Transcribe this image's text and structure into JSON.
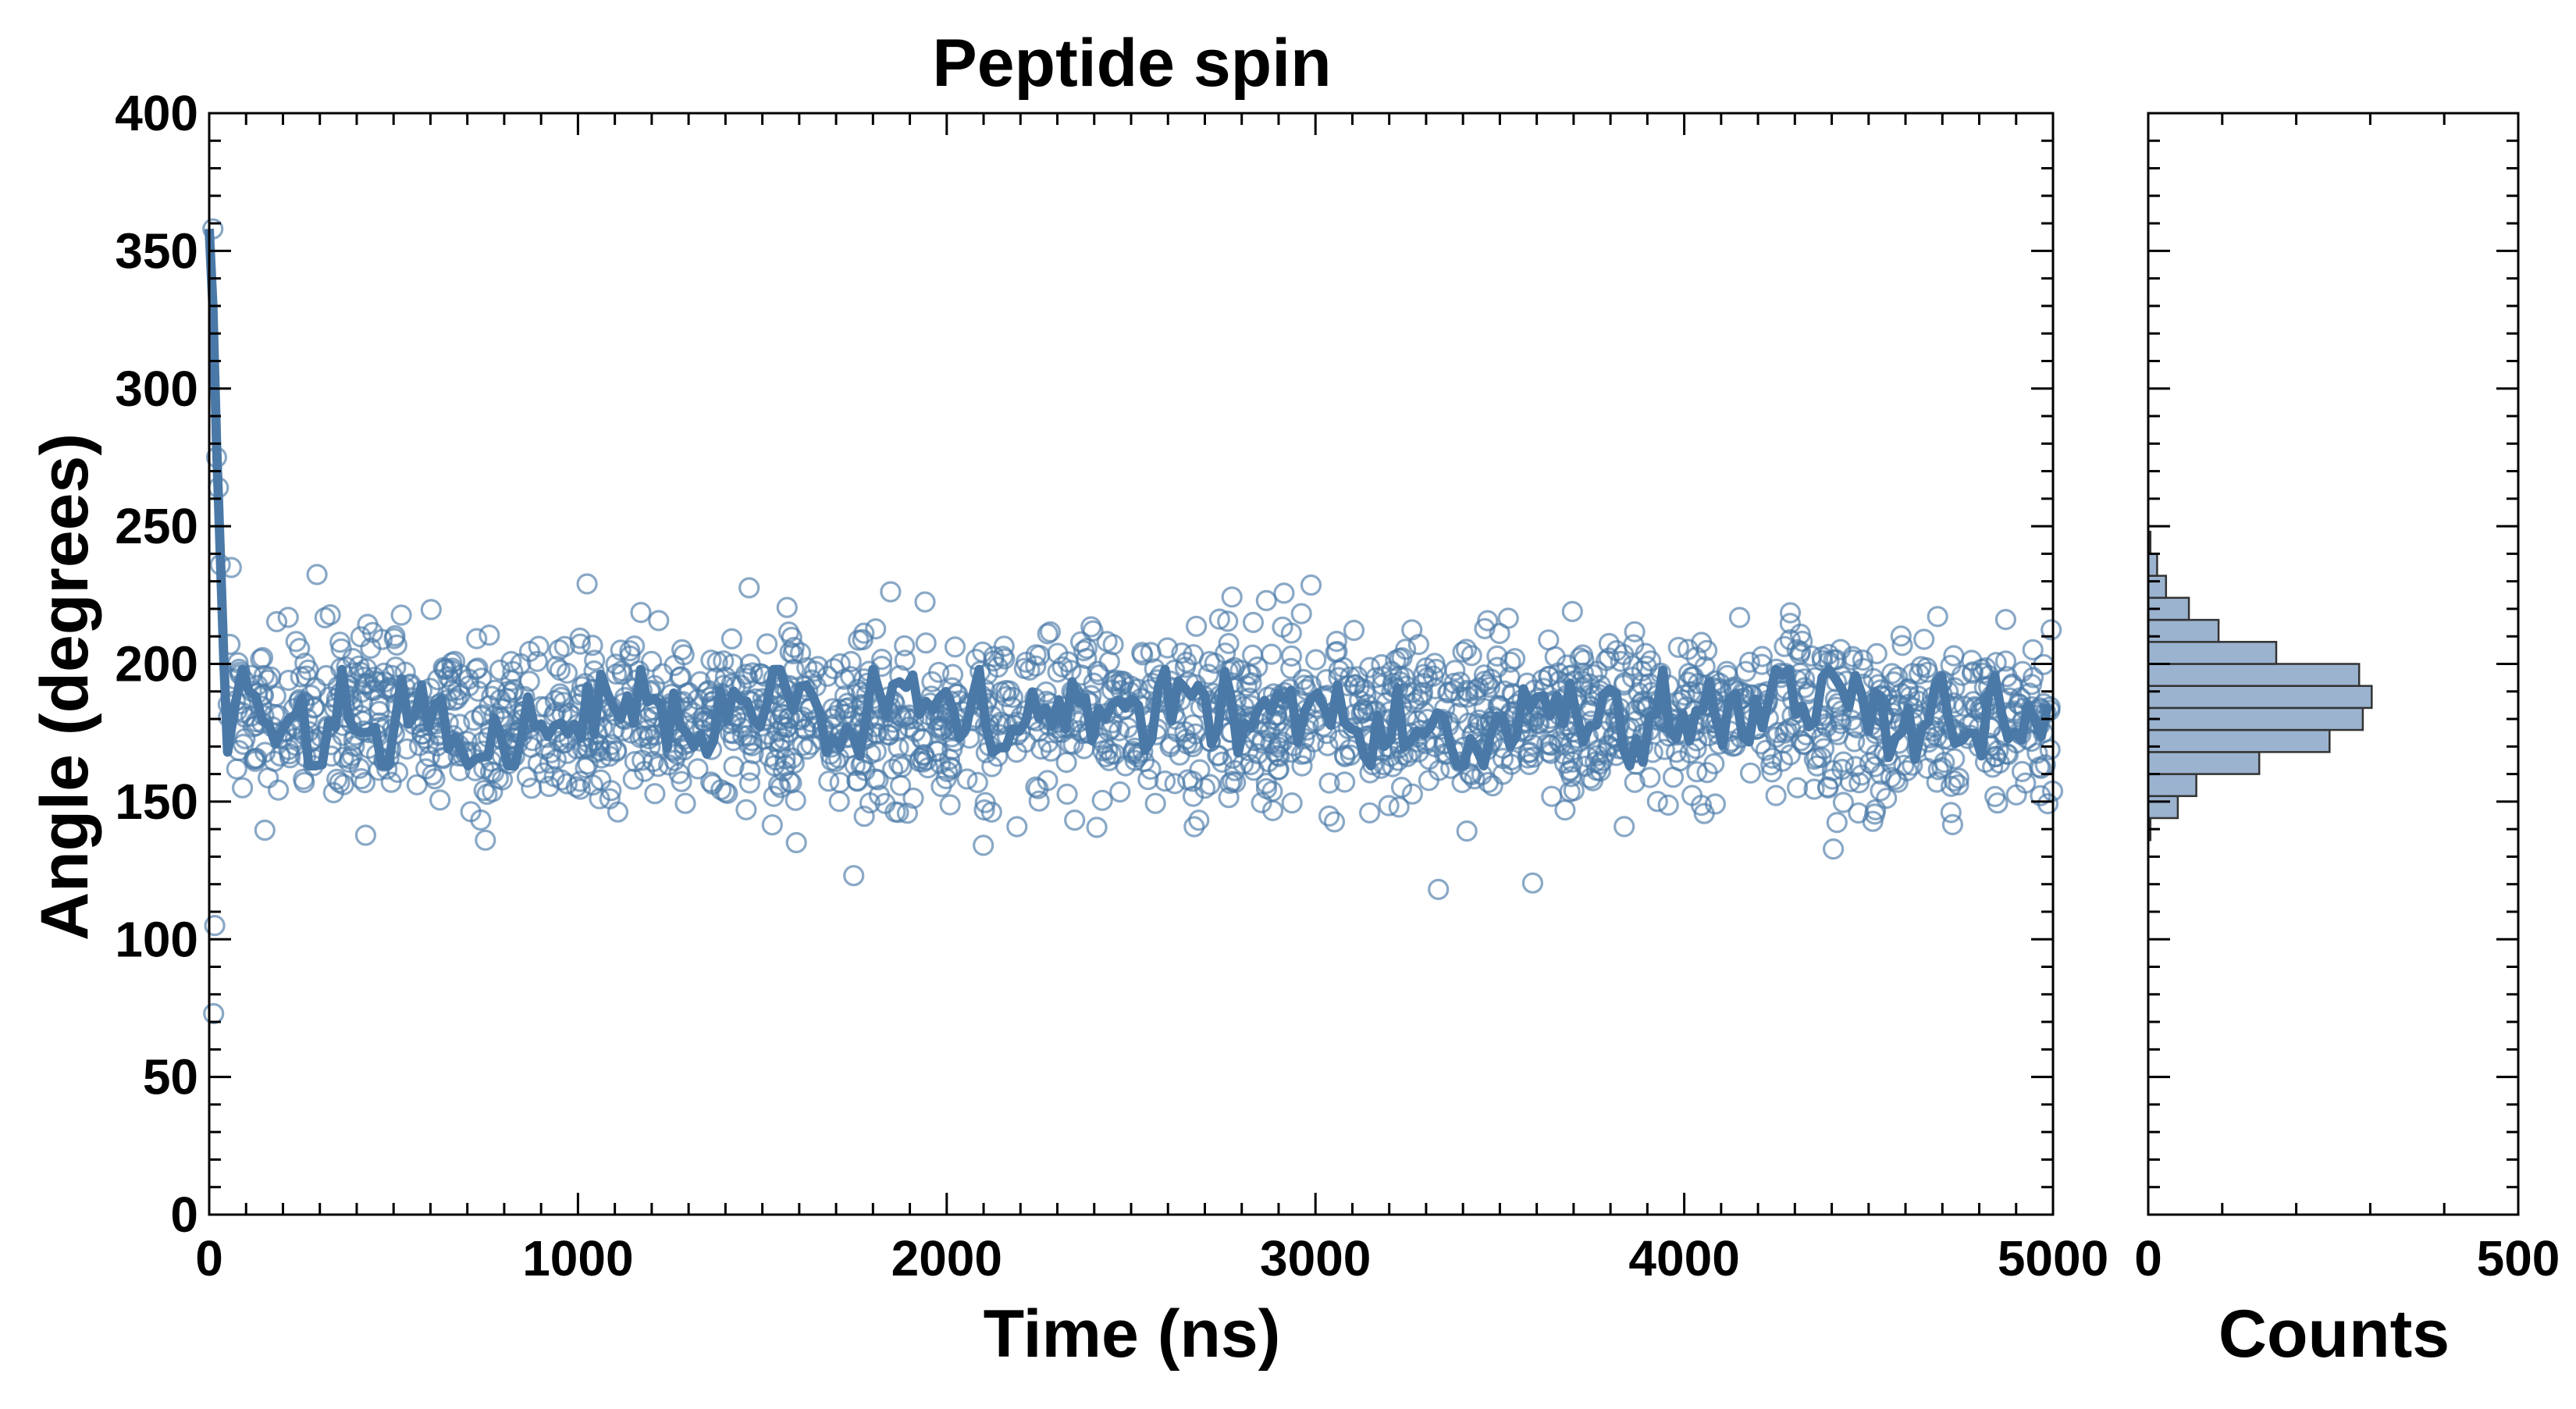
{
  "chart_data": [
    {
      "type": "scatter",
      "title": "Peptide spin",
      "xlabel": "Time (ns)",
      "ylabel": "Angle (degrees)",
      "xlim": [
        0,
        5000
      ],
      "ylim": [
        0,
        400
      ],
      "x_ticks": [
        "0",
        "1000",
        "2000",
        "3000",
        "4000",
        "5000"
      ],
      "y_ticks": [
        "0",
        "50",
        "100",
        "150",
        "200",
        "250",
        "300",
        "350",
        "400"
      ],
      "grid": false,
      "colors": {
        "points": "#4a79a8",
        "line": "#4a79a8"
      },
      "series": [
        {
          "kind": "scatter",
          "marker": "open-circle",
          "description_values": "about 2000 samples, mean ~181, sd ~15, range ~120-235 after 50 ns",
          "initial_points": [
            [
              10,
              358
            ],
            [
              15,
              105
            ],
            [
              12,
              73
            ],
            [
              20,
              275
            ],
            [
              25,
              264
            ],
            [
              30,
              236
            ],
            [
              60,
              235
            ]
          ],
          "mean": 181,
          "sd": 15,
          "n": 2000
        },
        {
          "kind": "line",
          "description_values": "running average starting near 360 at t=0, dropping to ~175 by 50 ns, then oscillating between ~165 and ~195",
          "start": [
            [
              0,
              358
            ],
            [
              10,
              330
            ],
            [
              20,
              280
            ],
            [
              30,
              240
            ],
            [
              40,
              200
            ],
            [
              50,
              168
            ],
            [
              70,
              185
            ]
          ],
          "mean": 181,
          "amplitude": 9
        }
      ]
    },
    {
      "type": "bar",
      "orientation": "horizontal",
      "xlabel": "Counts",
      "xlim": [
        0,
        500
      ],
      "ylim": [
        0,
        400
      ],
      "x_ticks": [
        "0",
        "500"
      ],
      "bin_width": 8,
      "bins": [
        {
          "lo": 136,
          "hi": 144,
          "count": 3
        },
        {
          "lo": 144,
          "hi": 152,
          "count": 40
        },
        {
          "lo": 152,
          "hi": 160,
          "count": 65
        },
        {
          "lo": 160,
          "hi": 168,
          "count": 150
        },
        {
          "lo": 168,
          "hi": 176,
          "count": 245
        },
        {
          "lo": 176,
          "hi": 184,
          "count": 290
        },
        {
          "lo": 184,
          "hi": 192,
          "count": 302
        },
        {
          "lo": 192,
          "hi": 200,
          "count": 285
        },
        {
          "lo": 200,
          "hi": 208,
          "count": 173
        },
        {
          "lo": 208,
          "hi": 216,
          "count": 95
        },
        {
          "lo": 216,
          "hi": 224,
          "count": 55
        },
        {
          "lo": 224,
          "hi": 232,
          "count": 24
        },
        {
          "lo": 232,
          "hi": 240,
          "count": 12
        },
        {
          "lo": 240,
          "hi": 248,
          "count": 3
        }
      ],
      "colors": {
        "fill": "#9bb3cf",
        "edge": "#333333"
      }
    }
  ]
}
